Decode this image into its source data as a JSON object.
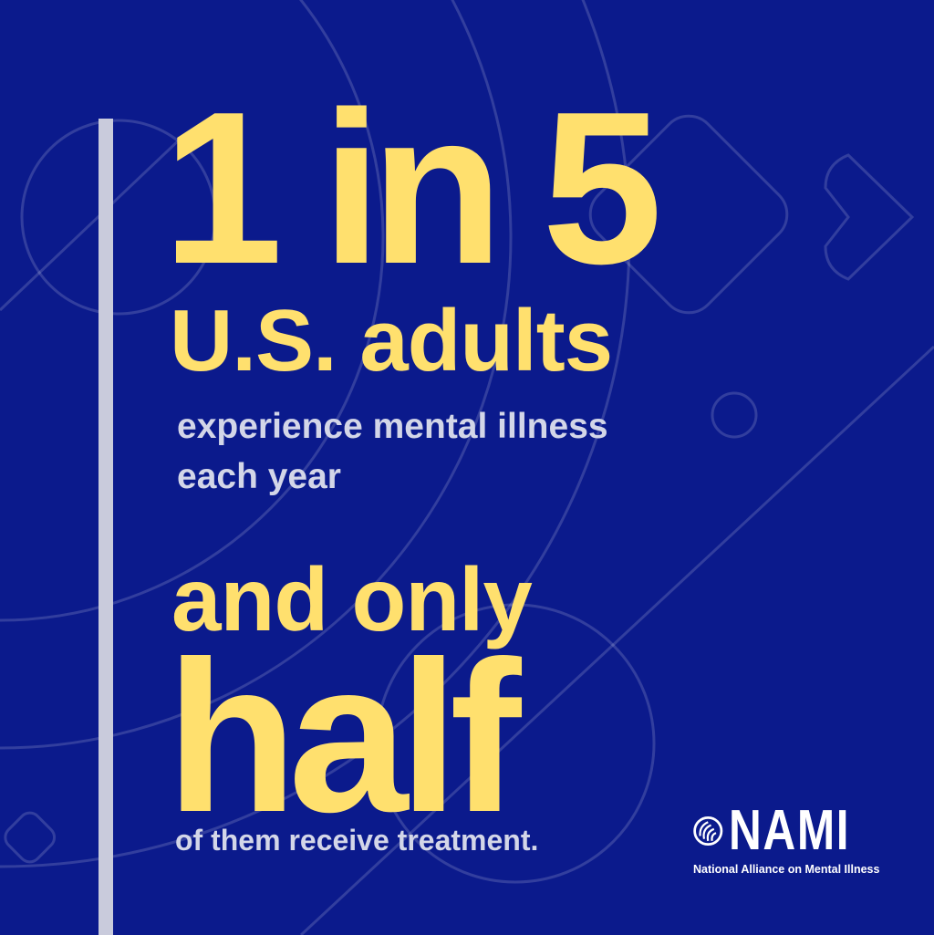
{
  "headline": {
    "stat": "1 in 5",
    "subject": "U.S. adults",
    "detail": "experience mental illness each year"
  },
  "secondary": {
    "lead": "and only",
    "emphasis": "half",
    "detail": "of them receive treatment."
  },
  "logo": {
    "wordmark": "NAMI",
    "tagline": "National Alliance on Mental Illness"
  },
  "colors": {
    "background": "#0b1a8c",
    "accent_yellow": "#ffe06e",
    "body_text": "#d3d6e8",
    "bar": "#c9cbdc"
  }
}
